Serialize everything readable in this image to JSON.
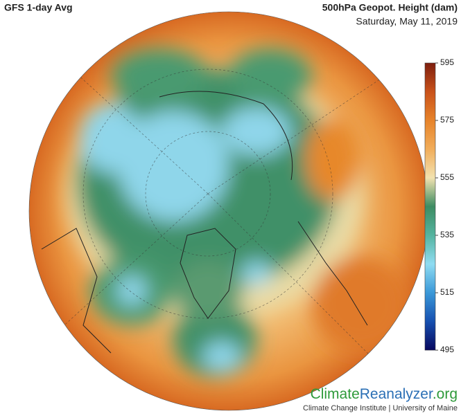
{
  "header": {
    "title": "GFS 1-day Avg",
    "variable": "500hPa Geopot. Height (dam)",
    "date": "Saturday, May 11, 2019"
  },
  "colorbar": {
    "ylim": [
      495,
      595
    ],
    "yticks": [
      595,
      575,
      555,
      535,
      515,
      495
    ],
    "colors": [
      "#07075e",
      "#1650b0",
      "#3a98d8",
      "#8fdcf2",
      "#55b4a0",
      "#3d8c62",
      "#f2e2b0",
      "#f1ad5a",
      "#e7832a",
      "#c9521a",
      "#7e1e0e"
    ]
  },
  "footer": {
    "brand": [
      "Climate",
      "Reanalyzer",
      ".org"
    ],
    "credit": "Climate Change Institute | University of Maine"
  }
}
